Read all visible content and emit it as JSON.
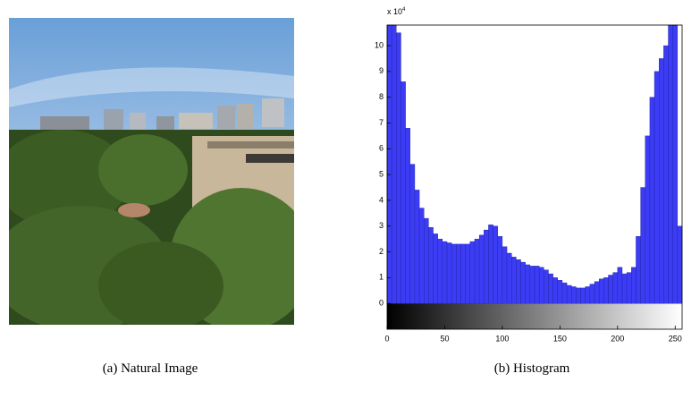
{
  "chart_data": {
    "type": "histogram",
    "y_scale_label": "x 10",
    "y_scale_exponent": "4",
    "bins": [
      0,
      4,
      8,
      12,
      16,
      20,
      24,
      28,
      32,
      36,
      40,
      44,
      48,
      52,
      56,
      60,
      64,
      68,
      72,
      76,
      80,
      84,
      88,
      92,
      96,
      100,
      104,
      108,
      112,
      116,
      120,
      124,
      128,
      132,
      136,
      140,
      144,
      148,
      152,
      156,
      160,
      164,
      168,
      172,
      176,
      180,
      184,
      188,
      192,
      196,
      200,
      204,
      208,
      212,
      216,
      220,
      224,
      228,
      232,
      236,
      240,
      244,
      248,
      252,
      256
    ],
    "values": [
      10.8,
      10.8,
      10.5,
      8.6,
      6.8,
      5.4,
      4.4,
      3.7,
      3.3,
      2.95,
      2.7,
      2.5,
      2.4,
      2.35,
      2.3,
      2.3,
      2.3,
      2.3,
      2.4,
      2.5,
      2.65,
      2.85,
      3.05,
      3.0,
      2.6,
      2.2,
      1.95,
      1.8,
      1.7,
      1.6,
      1.5,
      1.45,
      1.45,
      1.4,
      1.3,
      1.15,
      1.0,
      0.9,
      0.8,
      0.7,
      0.65,
      0.6,
      0.6,
      0.65,
      0.75,
      0.85,
      0.95,
      1.0,
      1.1,
      1.2,
      1.4,
      1.15,
      1.2,
      1.4,
      2.6,
      4.5,
      6.5,
      8.0,
      9.0,
      9.5,
      10.0,
      10.8,
      10.8,
      3.0
    ],
    "color": "#3c3cf5",
    "xlim": [
      0,
      256
    ],
    "ylim": [
      -1,
      10.8
    ],
    "xticks": [
      0,
      50,
      100,
      150,
      200,
      250
    ],
    "yticks": [
      0,
      1,
      2,
      3,
      4,
      5,
      6,
      7,
      8,
      9,
      10
    ]
  },
  "captions": [
    "(a) Natural Image",
    "(b) Histogram"
  ]
}
